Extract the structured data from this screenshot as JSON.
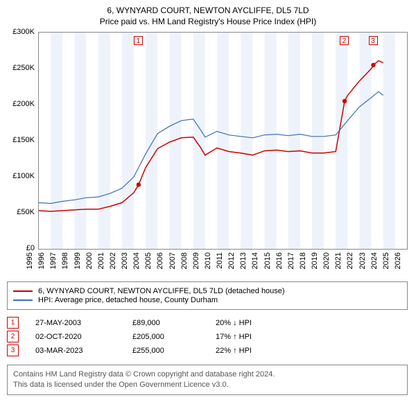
{
  "title_line1": "6, WYNYARD COURT, NEWTON AYCLIFFE, DL5 7LD",
  "title_line2": "Price paid vs. HM Land Registry's House Price Index (HPI)",
  "chart": {
    "type": "line",
    "background_color": "#ffffff",
    "shade_band_color": "#eef3fb",
    "border_color": "#888888",
    "x_years": [
      1995,
      1996,
      1997,
      1998,
      1999,
      2000,
      2001,
      2002,
      2003,
      2004,
      2005,
      2006,
      2007,
      2008,
      2009,
      2010,
      2011,
      2012,
      2013,
      2014,
      2015,
      2016,
      2017,
      2018,
      2019,
      2020,
      2021,
      2022,
      2023,
      2024,
      2025,
      2026
    ],
    "xlim": [
      1995,
      2026
    ],
    "ylim": [
      0,
      300000
    ],
    "ytick_step": 50000,
    "ytick_labels": [
      "£0",
      "£50K",
      "£100K",
      "£150K",
      "£200K",
      "£250K",
      "£300K"
    ],
    "shade_bands": [
      [
        1996,
        1997
      ],
      [
        1998,
        1999
      ],
      [
        2000,
        2001
      ],
      [
        2002,
        2003
      ],
      [
        2004,
        2005
      ],
      [
        2006,
        2007
      ],
      [
        2008,
        2009
      ],
      [
        2010,
        2011
      ],
      [
        2012,
        2013
      ],
      [
        2014,
        2015
      ],
      [
        2016,
        2017
      ],
      [
        2018,
        2019
      ],
      [
        2020,
        2021
      ],
      [
        2022,
        2023
      ],
      [
        2024,
        2025
      ]
    ],
    "series": [
      {
        "name": "property",
        "label": "6, WYNYARD COURT, NEWTON AYCLIFFE, DL5 7LD (detached house)",
        "color": "#cc0000",
        "line_width": 1.5,
        "points": [
          [
            1995,
            53000
          ],
          [
            1996,
            52000
          ],
          [
            1997,
            53000
          ],
          [
            1998,
            54000
          ],
          [
            1999,
            55000
          ],
          [
            2000,
            55000
          ],
          [
            2001,
            59000
          ],
          [
            2002,
            64000
          ],
          [
            2003,
            78000
          ],
          [
            2003.4,
            89000
          ],
          [
            2004,
            113000
          ],
          [
            2005,
            139000
          ],
          [
            2006,
            148000
          ],
          [
            2007,
            154000
          ],
          [
            2008,
            155000
          ],
          [
            2008.6,
            141000
          ],
          [
            2009,
            130000
          ],
          [
            2010,
            140000
          ],
          [
            2011,
            135000
          ],
          [
            2012,
            133000
          ],
          [
            2013,
            130000
          ],
          [
            2014,
            136000
          ],
          [
            2015,
            137000
          ],
          [
            2016,
            135000
          ],
          [
            2017,
            136000
          ],
          [
            2018,
            133000
          ],
          [
            2019,
            133000
          ],
          [
            2020,
            135000
          ],
          [
            2020.75,
            205000
          ],
          [
            2021,
            213000
          ],
          [
            2022,
            233000
          ],
          [
            2023,
            250000
          ],
          [
            2023.17,
            255000
          ],
          [
            2023.6,
            261000
          ],
          [
            2024,
            258000
          ]
        ]
      },
      {
        "name": "hpi",
        "label": "HPI: Average price, detached house, County Durham",
        "color": "#3b6fb6",
        "line_width": 1.2,
        "points": [
          [
            1995,
            64000
          ],
          [
            1996,
            63000
          ],
          [
            1997,
            66000
          ],
          [
            1998,
            68000
          ],
          [
            1999,
            71000
          ],
          [
            2000,
            72000
          ],
          [
            2001,
            77000
          ],
          [
            2002,
            84000
          ],
          [
            2003,
            100000
          ],
          [
            2004,
            132000
          ],
          [
            2005,
            160000
          ],
          [
            2006,
            170000
          ],
          [
            2007,
            178000
          ],
          [
            2008,
            180000
          ],
          [
            2008.7,
            163000
          ],
          [
            2009,
            155000
          ],
          [
            2010,
            163000
          ],
          [
            2011,
            158000
          ],
          [
            2012,
            156000
          ],
          [
            2013,
            154000
          ],
          [
            2014,
            158000
          ],
          [
            2015,
            159000
          ],
          [
            2016,
            157000
          ],
          [
            2017,
            159000
          ],
          [
            2018,
            156000
          ],
          [
            2019,
            156000
          ],
          [
            2020,
            158000
          ],
          [
            2021,
            178000
          ],
          [
            2022,
            197000
          ],
          [
            2023,
            210000
          ],
          [
            2023.6,
            218000
          ],
          [
            2024,
            213000
          ]
        ]
      }
    ],
    "sale_markers": [
      {
        "n": "1",
        "year": 2003.4,
        "price": 89000
      },
      {
        "n": "2",
        "year": 2020.75,
        "price": 205000
      },
      {
        "n": "3",
        "year": 2023.17,
        "price": 255000
      }
    ],
    "marker_dot_color": "#cc0000",
    "marker_dot_radius": 3.2
  },
  "legend": {
    "items": [
      {
        "color": "#cc0000",
        "label_path": "chart.series.0.label"
      },
      {
        "color": "#3b6fb6",
        "label_path": "chart.series.1.label"
      }
    ]
  },
  "sales": [
    {
      "n": "1",
      "date": "27-MAY-2003",
      "price": "£89,000",
      "delta": "20% ↓ HPI"
    },
    {
      "n": "2",
      "date": "02-OCT-2020",
      "price": "£205,000",
      "delta": "17% ↑ HPI"
    },
    {
      "n": "3",
      "date": "03-MAR-2023",
      "price": "£255,000",
      "delta": "22% ↑ HPI"
    }
  ],
  "notice_line1": "Contains HM Land Registry data © Crown copyright and database right 2024.",
  "notice_line2": "This data is licensed under the Open Government Licence v3.0."
}
